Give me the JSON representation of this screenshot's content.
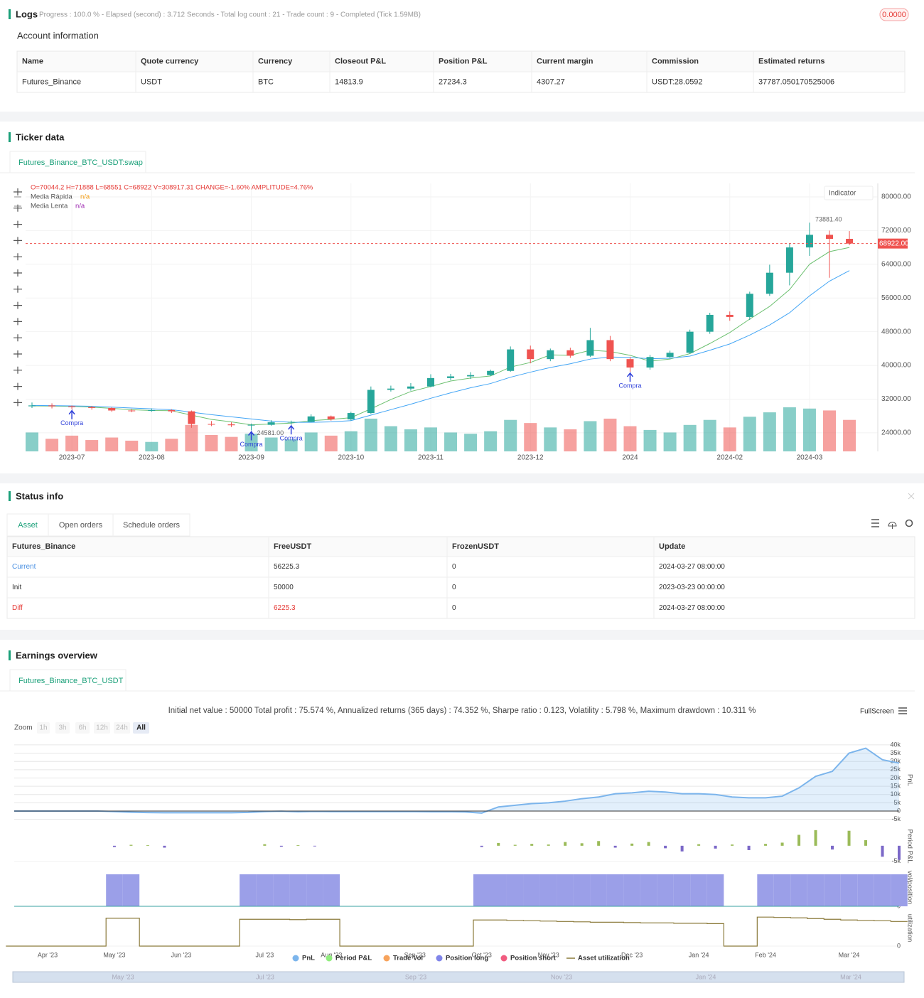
{
  "logs": {
    "title": "Logs",
    "progress": "Progress : 100.0 % - Elapsed (second) : 3.712 Seconds - Total log count : 21 - Trade count : 9 - Completed (Tick 1.59MB)",
    "badge": "0.0000"
  },
  "account": {
    "title": "Account information",
    "columns": [
      "Name",
      "Quote currency",
      "Currency",
      "Closeout P&L",
      "Position P&L",
      "Current margin",
      "Commission",
      "Estimated returns"
    ],
    "rows": [
      [
        "Futures_Binance",
        "USDT",
        "BTC",
        "14813.9",
        "27234.3",
        "4307.27",
        "USDT:28.0592",
        "37787.050170525006"
      ]
    ]
  },
  "ticker": {
    "title": "Ticker data",
    "tab": "Futures_Binance_BTC_USDT:swap"
  },
  "status": {
    "title": "Status info",
    "tabs": [
      "Asset",
      "Open orders",
      "Schedule orders"
    ],
    "columns": [
      "Futures_Binance",
      "FreeUSDT",
      "FrozenUSDT",
      "Update"
    ],
    "rows": [
      [
        "Current",
        "56225.3",
        "0",
        "2024-03-27 08:00:00"
      ],
      [
        "Init",
        "50000",
        "0",
        "2023-03-23 00:00:00"
      ],
      [
        "Diff",
        "6225.3",
        "0",
        "2024-03-27 08:00:00"
      ]
    ]
  },
  "earnings": {
    "title": "Earnings overview",
    "tab": "Futures_Binance_BTC_USDT",
    "summary": "Initial net value : 50000 Total profit : 75.574 %, Annualized returns (365 days) : 74.352 %, Sharpe ratio : 0.123, Volatility : 5.798 %, Maximum drawdown : 10.311 %",
    "fullscreen": "FullScreen",
    "zoom": {
      "label": "Zoom",
      "buttons": [
        "1h",
        "3h",
        "6h",
        "12h",
        "24h",
        "All"
      ]
    },
    "navigator_labels": [
      "May '23",
      "Jul '23",
      "Sep '23",
      "Nov '23",
      "Jan '24",
      "Mar '24"
    ]
  },
  "chart_data": [
    {
      "type": "candlestick",
      "ohlc_text": "O=70044.2 H=71888 L=68551 C=68922 V=308917.31 CHANGE=-1.60% AMPLITUDE=4.76%",
      "indicator_button": "Indicator",
      "up_color": "#26a69a",
      "down_color": "#ef5350",
      "categories": [
        null,
        null,
        "2023-07",
        null,
        null,
        null,
        "2023-08",
        null,
        null,
        null,
        null,
        "2023-09",
        null,
        null,
        null,
        null,
        "2023-10",
        null,
        null,
        null,
        "2023-11",
        null,
        null,
        null,
        null,
        "2023-12",
        null,
        null,
        null,
        null,
        "2024",
        null,
        null,
        null,
        null,
        "2024-02",
        null,
        null,
        null,
        "2024-03",
        null,
        null
      ],
      "open": [
        30300,
        30500,
        30300,
        30100,
        29900,
        29300,
        29200,
        29400,
        29100,
        26100,
        26000,
        25800,
        25900,
        26500,
        26600,
        27900,
        27200,
        28700,
        34200,
        34500,
        35000,
        37000,
        37400,
        37700,
        38700,
        43800,
        41500,
        43600,
        42300,
        46000,
        41500,
        39500,
        42000,
        43000,
        48000,
        52000,
        51500,
        57000,
        62000,
        68000,
        71000,
        70044.2
      ],
      "high": [
        31200,
        31000,
        30500,
        30400,
        30100,
        29700,
        29800,
        29600,
        29300,
        26800,
        26500,
        26200,
        27000,
        26900,
        28400,
        28100,
        29000,
        35000,
        35200,
        35800,
        37900,
        38000,
        38400,
        39000,
        44500,
        44700,
        44000,
        44200,
        48900,
        47000,
        42000,
        42500,
        43500,
        48500,
        52500,
        52800,
        57500,
        63900,
        69000,
        73881.4,
        72000,
        71888
      ],
      "low": [
        29900,
        29800,
        29600,
        29500,
        29000,
        28900,
        29000,
        28700,
        25200,
        25600,
        25400,
        24581,
        25700,
        26000,
        26500,
        26900,
        26900,
        28500,
        33800,
        34000,
        34800,
        36500,
        36800,
        37500,
        38500,
        40500,
        41000,
        41800,
        42000,
        41000,
        38500,
        39000,
        41800,
        42800,
        47500,
        50600,
        50800,
        56500,
        59000,
        66000,
        60800,
        68551
      ],
      "close": [
        30500,
        30300,
        30100,
        29900,
        29300,
        29200,
        29400,
        29100,
        26100,
        26000,
        25800,
        25900,
        26500,
        26600,
        27900,
        27200,
        28700,
        34200,
        34500,
        35000,
        37000,
        37400,
        37700,
        38700,
        43800,
        41500,
        43600,
        42300,
        46000,
        41500,
        39500,
        42000,
        43000,
        48000,
        52000,
        51500,
        57000,
        62000,
        68000,
        71000,
        70044.2,
        68922
      ],
      "volume": [
        300,
        200,
        250,
        180,
        220,
        170,
        150,
        200,
        420,
        260,
        230,
        280,
        220,
        190,
        300,
        250,
        320,
        520,
        400,
        350,
        380,
        300,
        280,
        320,
        500,
        450,
        380,
        350,
        480,
        520,
        400,
        340,
        300,
        420,
        500,
        380,
        550,
        620,
        700,
        680,
        650,
        500
      ],
      "series": [
        {
          "name": "Media Rápida",
          "status": "n/a",
          "color": "#6cc070",
          "values": [
            30400,
            30350,
            30300,
            30100,
            29800,
            29500,
            29300,
            29250,
            28200,
            27200,
            26600,
            25900,
            26100,
            26300,
            26900,
            27200,
            27600,
            29700,
            31900,
            33800,
            35000,
            36300,
            37000,
            37500,
            39600,
            40700,
            42500,
            42400,
            43600,
            43300,
            42400,
            41000,
            41500,
            42800,
            45200,
            47800,
            51000,
            54000,
            58000,
            64000,
            67000,
            68000
          ]
        },
        {
          "name": "Media Lenta",
          "status": "n/a",
          "color": "#42a5f5",
          "values": [
            30500,
            30450,
            30400,
            30300,
            30100,
            29900,
            29700,
            29500,
            28900,
            28300,
            27800,
            27300,
            26800,
            26500,
            26500,
            26600,
            26900,
            28200,
            29500,
            30800,
            32200,
            33500,
            34700,
            35700,
            37200,
            38400,
            39500,
            40400,
            41500,
            42000,
            41900,
            41600,
            41700,
            42200,
            43600,
            45100,
            47200,
            49600,
            52500,
            56500,
            60000,
            62500
          ]
        }
      ],
      "ylim": [
        19600,
        83200
      ],
      "yticks": [
        {
          "value": 24000,
          "label": "24000.00"
        },
        {
          "value": 32000,
          "label": "32000.00"
        },
        {
          "value": 40000,
          "label": "40000.00"
        },
        {
          "value": 48000,
          "label": "48000.00"
        },
        {
          "value": 56000,
          "label": "56000.00"
        },
        {
          "value": 64000,
          "label": "64000.00"
        },
        {
          "value": 72000,
          "label": "72000.00"
        },
        {
          "value": 80000,
          "label": "80000.00"
        }
      ],
      "last_price_label": "68922.00",
      "high_label": {
        "index": 39,
        "text": "73881.40"
      },
      "low_label": {
        "index": 11,
        "text": "24581.00"
      },
      "annotations": [
        {
          "index": 2,
          "text": "Compra"
        },
        {
          "index": 11,
          "text": "Compra"
        },
        {
          "index": 13,
          "text": "Compra"
        },
        {
          "index": 30,
          "text": "Compra"
        }
      ]
    },
    {
      "type": "combo",
      "categories": [
        null,
        null,
        "Apr '23",
        null,
        null,
        null,
        "May '23",
        null,
        null,
        null,
        "Jun '23",
        null,
        null,
        null,
        null,
        "Jul '23",
        null,
        null,
        null,
        "Aug '23",
        null,
        null,
        null,
        null,
        "Sep '23",
        null,
        null,
        null,
        "Oct '23",
        null,
        null,
        null,
        "Nov '23",
        null,
        null,
        null,
        null,
        "Dec '23",
        null,
        null,
        null,
        "Jan '24",
        null,
        null,
        null,
        "Feb '24",
        null,
        null,
        null,
        null,
        "Mar '24",
        null,
        null,
        null
      ],
      "panels": [
        {
          "type": "area",
          "axis_title": "PnL",
          "color": "#7cb5ec",
          "ylim": [
            -6000,
            43400
          ],
          "yticks": [
            {
              "value": -5000,
              "label": "-5k"
            },
            0,
            {
              "value": 5000,
              "label": "5k"
            },
            {
              "value": 10000,
              "label": "10k"
            },
            {
              "value": 15000,
              "label": "15k"
            },
            {
              "value": 20000,
              "label": "20k"
            },
            {
              "value": 25000,
              "label": "25k"
            },
            {
              "value": 30000,
              "label": "30k"
            },
            {
              "value": 35000,
              "label": "35k"
            },
            {
              "value": 40000,
              "label": "40k"
            }
          ],
          "values": [
            0,
            0,
            0,
            0,
            0,
            0,
            -300,
            -700,
            -900,
            -1000,
            -1000,
            -1000,
            -1000,
            -1000,
            -800,
            -300,
            -100,
            -400,
            -200,
            -300,
            -300,
            -300,
            -300,
            -300,
            -300,
            -400,
            -400,
            -500,
            -1200,
            2500,
            3500,
            4500,
            5000,
            6000,
            7500,
            8500,
            10500,
            11000,
            12000,
            11500,
            10500,
            10500,
            10000,
            8500,
            8000,
            8000,
            9000,
            14000,
            21000,
            24000,
            35000,
            38000,
            31000,
            29000
          ]
        },
        {
          "type": "bar",
          "axis_title": "Period P&L",
          "color": "#9bbb59",
          "negative_color": "#7b68c8",
          "ylim": [
            -6400,
            6100
          ],
          "yticks": [
            {
              "value": -5000,
              "label": "-5k"
            }
          ],
          "values": [
            null,
            null,
            null,
            null,
            null,
            null,
            -400,
            300,
            200,
            -600,
            null,
            null,
            null,
            null,
            null,
            500,
            -300,
            200,
            -200,
            null,
            null,
            null,
            null,
            null,
            null,
            null,
            null,
            null,
            -400,
            900,
            300,
            600,
            400,
            1200,
            800,
            1500,
            -600,
            700,
            1200,
            -800,
            -1800,
            500,
            -900,
            400,
            -1400,
            600,
            1000,
            3500,
            5000,
            -1200,
            4800,
            1800,
            -3500,
            -4500
          ]
        },
        {
          "type": "block",
          "axis_title": "vol/position",
          "color": "#9b9fe8",
          "ylim": [
            0,
            1
          ],
          "yticks": [
            0
          ],
          "values": [
            0,
            0,
            0,
            0,
            0,
            0,
            0.85,
            0.85,
            0,
            0,
            0,
            0,
            0,
            0,
            0.85,
            0.85,
            0.85,
            0.85,
            0.85,
            0.85,
            0,
            0,
            0,
            0,
            0,
            0,
            0,
            0,
            0.85,
            0.85,
            0.85,
            0.85,
            0.85,
            0.85,
            0.85,
            0.85,
            0.85,
            0.85,
            0.85,
            0.85,
            0.85,
            0.85,
            0.85,
            0,
            0,
            0.85,
            0.85,
            0.85,
            0.85,
            0.85,
            0.85,
            0.85,
            0.85,
            0.85
          ]
        },
        {
          "type": "step",
          "axis_title": "utilization",
          "color": "#8b7a3a",
          "ylim": [
            0,
            1
          ],
          "yticks": [
            0
          ],
          "values": [
            0,
            0,
            0,
            0,
            0,
            0,
            0.77,
            0.77,
            0,
            0,
            0,
            0,
            0,
            0,
            0.74,
            0.74,
            0.74,
            0.73,
            0.74,
            0.74,
            0,
            0,
            0,
            0,
            0,
            0,
            0,
            0,
            0.72,
            0.72,
            0.71,
            0.7,
            0.69,
            0.68,
            0.67,
            0.66,
            0.66,
            0.65,
            0.64,
            0.64,
            0.63,
            0.63,
            0.62,
            0,
            0,
            0.8,
            0.79,
            0.78,
            0.76,
            0.74,
            0.72,
            0.71,
            0.7,
            0.68
          ]
        }
      ],
      "legend": [
        {
          "name": "PnL",
          "color": "#7cb5ec"
        },
        {
          "name": "Period P&L",
          "color": "#90ed7d"
        },
        {
          "name": "Trade Vol",
          "color": "#f7a35c"
        },
        {
          "name": "Position long",
          "color": "#8085e9"
        },
        {
          "name": "Position short",
          "color": "#f15c80"
        },
        {
          "name": "Asset utilization",
          "color": "#8b7a3a"
        }
      ]
    }
  ]
}
